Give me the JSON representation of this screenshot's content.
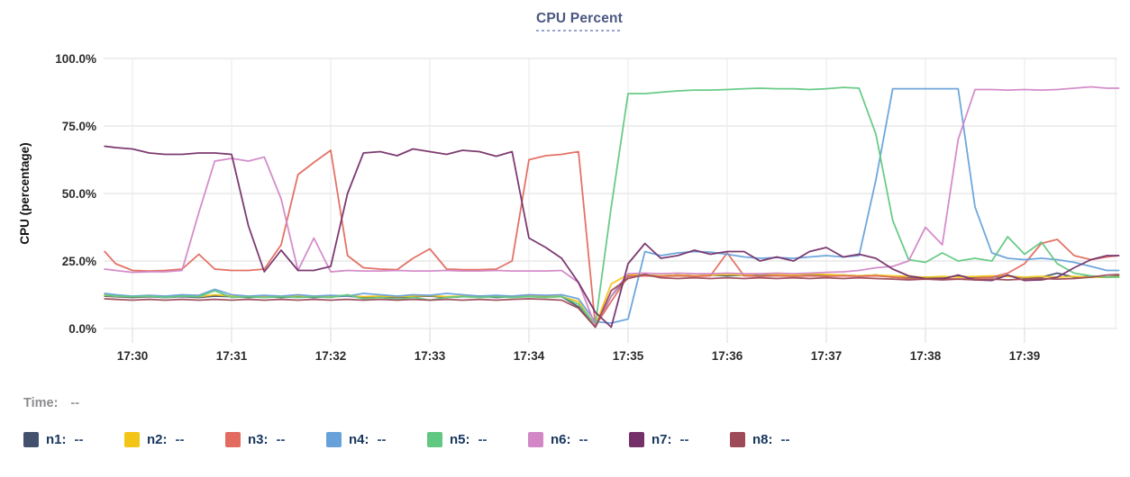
{
  "title": "CPU Percent",
  "time_readout": {
    "label": "Time:",
    "value": "--"
  },
  "legend": [
    {
      "id": "n1",
      "label": "n1:",
      "value": "--",
      "color": "#44516e"
    },
    {
      "id": "n2",
      "label": "n2:",
      "value": "--",
      "color": "#f3c517"
    },
    {
      "id": "n3",
      "label": "n3:",
      "value": "--",
      "color": "#e26a5f"
    },
    {
      "id": "n4",
      "label": "n4:",
      "value": "--",
      "color": "#67a1da"
    },
    {
      "id": "n5",
      "label": "n5:",
      "value": "--",
      "color": "#61c881"
    },
    {
      "id": "n6",
      "label": "n6:",
      "value": "--",
      "color": "#d287c7"
    },
    {
      "id": "n7",
      "label": "n7:",
      "value": "--",
      "color": "#753069"
    },
    {
      "id": "n8",
      "label": "n8:",
      "value": "--",
      "color": "#9d4a59"
    }
  ],
  "chart_data": {
    "type": "line",
    "title": "CPU Percent",
    "xlabel": "",
    "ylabel": "CPU (percentage)",
    "grid": true,
    "legend_position": "bottom",
    "y_axis": {
      "tick_values": [
        100,
        75,
        50,
        25,
        0
      ],
      "tick_labels": [
        "100.0%",
        "75.0%",
        "50.0%",
        "25.0%",
        "0.0%"
      ],
      "range": [
        0,
        100
      ]
    },
    "x_axis": {
      "tick_minutes": [
        30,
        31,
        32,
        33,
        34,
        35,
        36,
        37,
        38,
        39
      ],
      "tick_labels": [
        "17:30",
        "17:31",
        "17:32",
        "17:33",
        "17:34",
        "17:35",
        "17:36",
        "17:37",
        "17:38",
        "17:39"
      ],
      "extra_gridline_minute": 39.92,
      "range_minutes": [
        29.72,
        39.95
      ]
    },
    "x_minutes": [
      29.72,
      29.83,
      30,
      30.17,
      30.33,
      30.5,
      30.67,
      30.83,
      31,
      31.17,
      31.33,
      31.5,
      31.67,
      31.83,
      32,
      32.17,
      32.33,
      32.5,
      32.67,
      32.83,
      33,
      33.17,
      33.33,
      33.5,
      33.67,
      33.83,
      34,
      34.17,
      34.33,
      34.5,
      34.67,
      34.83,
      35,
      35.17,
      35.33,
      35.5,
      35.67,
      35.83,
      36,
      36.17,
      36.33,
      36.5,
      36.67,
      36.83,
      37,
      37.17,
      37.33,
      37.5,
      37.67,
      37.83,
      38,
      38.17,
      38.33,
      38.5,
      38.67,
      38.83,
      39,
      39.17,
      39.33,
      39.5,
      39.67,
      39.83,
      39.95
    ],
    "series": [
      {
        "name": "n1",
        "color": "#44516e",
        "values": [
          12,
          11.8,
          11.5,
          11.8,
          11.5,
          11.8,
          11.5,
          12,
          11.8,
          11.5,
          11.8,
          11.5,
          11.8,
          11.5,
          11.8,
          12,
          11.5,
          11.8,
          11.5,
          11.8,
          12,
          11.5,
          11.8,
          12,
          11.5,
          11.8,
          12.3,
          12,
          11.8,
          8,
          0.5,
          12,
          19.5,
          19.8,
          19.5,
          19.8,
          19.5,
          19.8,
          19.5,
          19.8,
          19.5,
          19.8,
          19.5,
          19.8,
          19.5,
          19.8,
          19.5,
          19.8,
          19,
          18.8,
          19,
          18.8,
          19.5,
          18.8,
          19,
          19.5,
          18.8,
          19,
          20.5,
          19,
          19.3,
          19,
          19.5
        ]
      },
      {
        "name": "n2",
        "color": "#f3c517",
        "values": [
          12.3,
          12,
          11.8,
          12,
          11.8,
          12.2,
          11.8,
          12.5,
          12,
          11.8,
          12,
          11.8,
          12.2,
          11.8,
          12,
          12.2,
          11.8,
          12,
          11.8,
          12,
          12.2,
          11.8,
          12,
          11.8,
          12.2,
          11.8,
          12,
          12.2,
          11.8,
          10,
          1,
          16.5,
          20,
          19.8,
          19.5,
          19.8,
          19.5,
          19.8,
          20,
          19.8,
          20.2,
          20,
          19.8,
          20.2,
          20,
          19.8,
          19.5,
          19.8,
          19.5,
          19.3,
          19,
          19.3,
          19,
          19.3,
          19.5,
          19.3,
          19,
          19.3,
          19,
          19.3,
          19,
          19,
          19.2
        ]
      },
      {
        "name": "n3",
        "color": "#e26a5f",
        "values": [
          28.5,
          24,
          21.5,
          21.3,
          21.5,
          22,
          27.5,
          22,
          21.5,
          21.5,
          22,
          31,
          57,
          61.5,
          66,
          27,
          22.5,
          22,
          21.8,
          26,
          29.5,
          22,
          21.8,
          21.8,
          22,
          25,
          62.5,
          64,
          64.5,
          65.5,
          1,
          10,
          19.3,
          19.5,
          19.3,
          19.5,
          19.3,
          19.5,
          28,
          19.5,
          19.3,
          19.5,
          19.3,
          19.5,
          19.3,
          19.5,
          19.3,
          19.5,
          19,
          18.5,
          18.3,
          18.5,
          18.3,
          18.5,
          19,
          20.5,
          24,
          31.5,
          33,
          27,
          25.5,
          26.5,
          27
        ]
      },
      {
        "name": "n4",
        "color": "#67a1da",
        "values": [
          13,
          12.5,
          12,
          12.3,
          12,
          12.5,
          12.3,
          14.5,
          12.5,
          12,
          12.3,
          12,
          12.5,
          12,
          12.3,
          12,
          13,
          12.5,
          12,
          12.5,
          12.3,
          13,
          12.5,
          12,
          12.3,
          12,
          12.5,
          12.3,
          12.5,
          11,
          2.5,
          2,
          3.5,
          28.5,
          27,
          28,
          28.5,
          28.3,
          27.5,
          26.5,
          26,
          26.3,
          26,
          26.5,
          27,
          26.5,
          27,
          55,
          88.8,
          88.8,
          88.8,
          88.8,
          88.8,
          45,
          28,
          26,
          25.5,
          26,
          25.5,
          24.5,
          23,
          21.5,
          21.5
        ]
      },
      {
        "name": "n5",
        "color": "#61c881",
        "values": [
          12.5,
          12,
          11.8,
          12,
          11.5,
          12,
          11.8,
          14,
          11.5,
          11.8,
          11.5,
          11.8,
          11.5,
          11.8,
          11.5,
          12.5,
          11,
          11.5,
          10.8,
          11.5,
          10.5,
          11.5,
          11.8,
          11.5,
          11.8,
          11.5,
          11.8,
          11.5,
          11.8,
          9,
          1.5,
          45,
          87,
          87,
          87.5,
          88,
          88.3,
          88.3,
          88.5,
          88.8,
          89,
          88.8,
          88.8,
          88.5,
          88.8,
          89.3,
          89,
          72,
          40,
          25.5,
          24.5,
          28,
          25,
          26,
          25,
          34,
          27.5,
          32,
          24,
          20.5,
          19.5,
          19,
          19
        ]
      },
      {
        "name": "n6",
        "color": "#d287c7",
        "values": [
          22,
          21.5,
          20.8,
          21,
          21,
          21.5,
          43,
          62,
          63,
          62,
          63.5,
          48,
          21.5,
          33.5,
          21,
          21.5,
          21.3,
          21.3,
          21.5,
          21.3,
          21.3,
          21.5,
          21.3,
          21.3,
          21.5,
          21.3,
          21.3,
          21.3,
          21.5,
          17,
          1,
          12,
          20.3,
          20.5,
          20.3,
          20.5,
          20.3,
          20.3,
          20.5,
          20.3,
          20.3,
          20.5,
          20.3,
          20.5,
          20.8,
          21,
          21.5,
          22.5,
          23,
          25,
          37.5,
          31,
          70,
          88.5,
          88.5,
          88.3,
          88.5,
          88.3,
          88.5,
          89,
          89.5,
          89,
          89
        ]
      },
      {
        "name": "n7",
        "color": "#753069",
        "values": [
          67.5,
          67,
          66.5,
          65,
          64.5,
          64.5,
          65,
          65,
          64.5,
          38,
          21,
          29,
          21.5,
          21.5,
          23,
          50,
          65,
          65.5,
          64,
          66.5,
          65.5,
          64.5,
          66,
          65.5,
          63.8,
          65.5,
          33.5,
          30,
          26,
          17,
          6,
          0.5,
          24,
          31.5,
          26,
          27,
          29,
          27.5,
          28.5,
          28.5,
          25,
          26.5,
          25,
          28.5,
          30,
          26.5,
          27.5,
          26,
          22,
          19.5,
          18.5,
          18.3,
          19.8,
          18,
          17.8,
          19.8,
          17.8,
          18,
          19,
          22.5,
          25.5,
          27,
          27
        ]
      },
      {
        "name": "n8",
        "color": "#9d4a59",
        "values": [
          11,
          10.8,
          10.5,
          10.8,
          10.5,
          10.8,
          10.5,
          10.8,
          10.5,
          10.8,
          10.5,
          10.8,
          10.5,
          10.8,
          10.5,
          10.8,
          10.5,
          10.8,
          10.5,
          10.8,
          10.5,
          10.8,
          10.5,
          10.8,
          10.5,
          10.8,
          11,
          10.8,
          10.5,
          7.5,
          0.5,
          14,
          18.5,
          20,
          18.8,
          18.5,
          18.8,
          18.5,
          18.8,
          18.5,
          18.8,
          18.5,
          18.8,
          18.5,
          18.8,
          18.5,
          18.8,
          18.5,
          18.3,
          18,
          18.3,
          18,
          18.3,
          18,
          18.3,
          18,
          18.3,
          18.5,
          18.3,
          18.5,
          19,
          19.8,
          20
        ]
      }
    ]
  }
}
